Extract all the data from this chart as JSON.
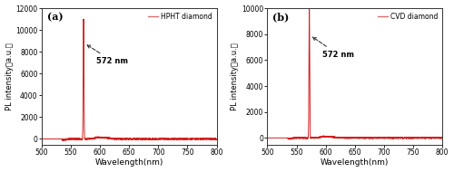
{
  "xlim": [
    500,
    800
  ],
  "ylim_a": [
    -500,
    12000
  ],
  "ylim_b": [
    -500,
    10000
  ],
  "yticks_a": [
    0,
    2000,
    4000,
    6000,
    8000,
    10000,
    12000
  ],
  "yticks_b": [
    0,
    2000,
    4000,
    6000,
    8000,
    10000
  ],
  "xticks": [
    500,
    550,
    600,
    650,
    700,
    750,
    800
  ],
  "xlabel": "Wavelength(nm)",
  "ylabel": "PL intensity（a.u.）",
  "label_a": "HPHT diamond",
  "label_b": "CVD diamond",
  "panel_a": "(a)",
  "panel_b": "(b)",
  "peak_wavelength": 572,
  "peak_label": "572 nm",
  "peak_a": 11000,
  "peak_b": 9900,
  "line_color": "#d42020",
  "legend_color": "#d87070",
  "noise_scale_a": 80,
  "noise_scale_b": 60,
  "background_color": "#ffffff",
  "signal_start": 535,
  "anno_arrow_color": "#333333"
}
